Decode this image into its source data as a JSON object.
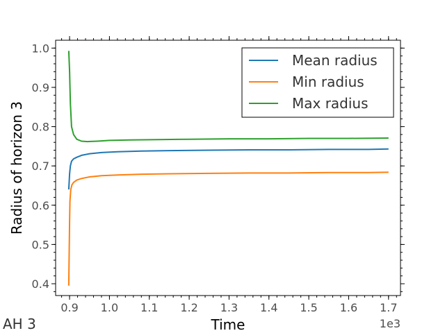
{
  "chart_data": {
    "type": "line",
    "title": "",
    "xlabel": "Time",
    "ylabel": "Radius of horizon 3",
    "x_offset_label": "1e3",
    "corner_label": "AH 3",
    "xlim": [
      0.865,
      1.73
    ],
    "ylim": [
      0.37,
      1.02
    ],
    "xticks": [
      0.9,
      1.0,
      1.1,
      1.2,
      1.3,
      1.4,
      1.5,
      1.6,
      1.7
    ],
    "xtick_labels": [
      "0.9",
      "1.0",
      "1.1",
      "1.2",
      "1.3",
      "1.4",
      "1.5",
      "1.6",
      "1.7"
    ],
    "yticks": [
      0.4,
      0.5,
      0.6,
      0.7,
      0.8,
      0.9,
      1.0
    ],
    "ytick_labels": [
      "0.4",
      "0.5",
      "0.6",
      "0.7",
      "0.8",
      "0.9",
      "1.0"
    ],
    "grid": false,
    "legend_position": "upper-right",
    "series": [
      {
        "name": "Mean radius",
        "color": "#1f77b4",
        "x": [
          0.898,
          0.899,
          0.9,
          0.902,
          0.905,
          0.91,
          0.918,
          0.93,
          0.95,
          0.98,
          1.02,
          1.08,
          1.15,
          1.25,
          1.35,
          1.45,
          1.55,
          1.65,
          1.7
        ],
        "y": [
          0.64,
          0.66,
          0.68,
          0.7,
          0.712,
          0.718,
          0.722,
          0.727,
          0.731,
          0.734,
          0.736,
          0.738,
          0.739,
          0.74,
          0.741,
          0.741,
          0.742,
          0.742,
          0.743
        ]
      },
      {
        "name": "Min radius",
        "color": "#ff7f0e",
        "x": [
          0.898,
          0.899,
          0.9,
          0.901,
          0.903,
          0.906,
          0.91,
          0.918,
          0.93,
          0.95,
          0.98,
          1.02,
          1.08,
          1.15,
          1.25,
          1.35,
          1.45,
          1.55,
          1.65,
          1.7
        ],
        "y": [
          0.395,
          0.48,
          0.56,
          0.61,
          0.64,
          0.652,
          0.658,
          0.664,
          0.668,
          0.672,
          0.675,
          0.677,
          0.679,
          0.68,
          0.681,
          0.682,
          0.682,
          0.683,
          0.683,
          0.684
        ]
      },
      {
        "name": "Max radius",
        "color": "#2ca02c",
        "x": [
          0.898,
          0.9,
          0.902,
          0.905,
          0.91,
          0.918,
          0.93,
          0.945,
          0.97,
          1.0,
          1.05,
          1.12,
          1.2,
          1.3,
          1.4,
          1.5,
          1.6,
          1.7
        ],
        "y": [
          0.993,
          0.94,
          0.86,
          0.8,
          0.78,
          0.768,
          0.763,
          0.762,
          0.763,
          0.765,
          0.766,
          0.767,
          0.768,
          0.769,
          0.769,
          0.77,
          0.77,
          0.771
        ]
      }
    ]
  }
}
